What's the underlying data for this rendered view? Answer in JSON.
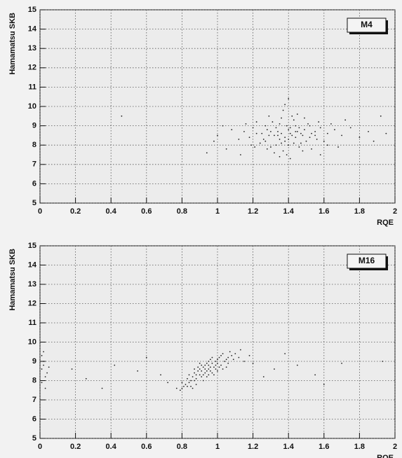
{
  "chart_data": [
    {
      "type": "scatter",
      "title": "M4",
      "x_label": "RQE",
      "y_label": "Hamamatsu SKB",
      "color": "#222222",
      "grid": true,
      "xlim": [
        0,
        2
      ],
      "ylim": [
        5,
        15
      ],
      "xticks": [
        0,
        0.2,
        0.4,
        0.6,
        0.8,
        1,
        1.2,
        1.4,
        1.6,
        1.8,
        2
      ],
      "yticks": [
        5,
        6,
        7,
        8,
        9,
        10,
        11,
        12,
        13,
        14,
        15
      ],
      "x": [
        1.32,
        1.41,
        1.38,
        1.45,
        1.28,
        1.52,
        1.35,
        1.47,
        1.22,
        1.58,
        1.4,
        1.3,
        1.43,
        1.36,
        1.49,
        1.26,
        1.55,
        1.39,
        1.33,
        1.44,
        1.2,
        1.62,
        1.37,
        1.42,
        1.29,
        1.51,
        1.34,
        1.46,
        1.24,
        1.6,
        1.41,
        1.31,
        1.48,
        1.18,
        1.66,
        1.38,
        1.27,
        1.53,
        1.35,
        1.44,
        1.21,
        1.57,
        1.4,
        1.32,
        1.47,
        1.15,
        1.7,
        1.39,
        1.36,
        1.5,
        1.25,
        1.43,
        1.33,
        1.55,
        1.28,
        1.45,
        1.12,
        1.75,
        1.4,
        1.37,
        1.62,
        1.22,
        1.48,
        1.3,
        1.52,
        1.35,
        1.42,
        1.19,
        1.64,
        1.38,
        1.08,
        1.8,
        1.46,
        1.27,
        1.56,
        1.34,
        1.41,
        1.05,
        1.85,
        1.49,
        1.16,
        1.68,
        1.29,
        1.53,
        1.36,
        1.44,
        0.98,
        1.92,
        1.03,
        0.94,
        1.88,
        0.46,
        1.95,
        1.0,
        1.72,
        1.13,
        1.4,
        1.58
      ],
      "values": [
        8.5,
        8.9,
        8.2,
        8.7,
        8.8,
        8.4,
        9.1,
        8.1,
        8.6,
        8.9,
        8.0,
        7.9,
        9.3,
        8.6,
        8.8,
        8.3,
        8.5,
        9.0,
        8.0,
        8.4,
        8.9,
        8.6,
        7.7,
        9.5,
        8.5,
        9.1,
        8.7,
        7.9,
        8.1,
        8.2,
        8.6,
        9.2,
        8.5,
        8.4,
        8.8,
        8.4,
        9.0,
        7.8,
        8.3,
        9.0,
        7.9,
        9.2,
        8.8,
        7.6,
        8.6,
        8.7,
        8.5,
        7.5,
        9.4,
        8.2,
        8.6,
        8.1,
        8.9,
        8.7,
        7.8,
        9.6,
        8.3,
        8.9,
        8.3,
        9.8,
        8.0,
        9.2,
        7.7,
        8.7,
        9.0,
        7.4,
        8.5,
        8.0,
        9.1,
        10.1,
        8.8,
        8.4,
        8.9,
        8.2,
        8.3,
        8.5,
        7.3,
        7.8,
        8.7,
        9.4,
        9.1,
        7.9,
        9.5,
        8.6,
        8.1,
        8.7,
        8.2,
        9.5,
        9.0,
        7.6,
        8.2,
        9.5,
        8.6,
        8.5,
        9.3,
        7.5,
        10.4,
        7.5
      ]
    },
    {
      "type": "scatter",
      "title": "M16",
      "x_label": "RQE",
      "y_label": "Hamamatsu SKB",
      "color": "#222222",
      "grid": true,
      "xlim": [
        0,
        2
      ],
      "ylim": [
        5,
        15
      ],
      "xticks": [
        0,
        0.2,
        0.4,
        0.6,
        0.8,
        1,
        1.2,
        1.4,
        1.6,
        1.8,
        2
      ],
      "yticks": [
        5,
        6,
        7,
        8,
        9,
        10,
        11,
        12,
        13,
        14,
        15
      ],
      "x": [
        0.95,
        0.9,
        1.0,
        0.85,
        1.05,
        0.92,
        0.97,
        0.88,
        1.02,
        0.94,
        0.82,
        1.08,
        0.96,
        0.91,
        0.99,
        0.87,
        1.03,
        0.93,
        0.8,
        1.1,
        0.98,
        0.89,
        1.01,
        0.84,
        0.95,
        0.9,
        1.06,
        0.86,
        0.97,
        0.92,
        1.04,
        0.81,
        0.99,
        0.94,
        1.12,
        0.88,
        0.96,
        0.83,
        1.0,
        0.91,
        1.07,
        0.85,
        0.93,
        0.98,
        1.02,
        0.87,
        0.95,
        0.9,
        1.15,
        0.79,
        0.96,
        1.09,
        0.84,
        0.92,
        1.01,
        0.89,
        0.97,
        0.86,
        1.03,
        0.94,
        1.18,
        0.8,
        0.99,
        0.91,
        1.05,
        0.88,
        0.77,
        1.13,
        0.95,
        0.83,
        1.2,
        0.93,
        1.0,
        0.87,
        1.06,
        0.02,
        0.01,
        0.03,
        0.02,
        0.01,
        0.04,
        0.02,
        0.03,
        0.01,
        0.05,
        0.26,
        0.35,
        0.42,
        0.55,
        0.68,
        0.72,
        1.26,
        1.38,
        1.45,
        1.55,
        1.7,
        1.93,
        0.18,
        1.6,
        0.6,
        1.32
      ],
      "values": [
        8.6,
        8.3,
        8.9,
        8.0,
        9.1,
        8.7,
        8.4,
        8.1,
        8.8,
        8.9,
        7.8,
        9.3,
        8.5,
        8.2,
        9.0,
        8.4,
        8.6,
        8.4,
        7.6,
        9.4,
        8.7,
        8.5,
        9.2,
        7.9,
        8.8,
        8.6,
        8.9,
        8.2,
        8.9,
        8.3,
        9.0,
        7.7,
        8.6,
        8.5,
        9.2,
        7.8,
        9.1,
        8.1,
        8.5,
        8.8,
        9.5,
        7.7,
        8.6,
        8.3,
        9.3,
        8.0,
        8.3,
        8.9,
        9.0,
        7.5,
        8.7,
        9.1,
        8.3,
        8.0,
        8.7,
        8.7,
        9.2,
        7.6,
        9.4,
        8.2,
        9.3,
        7.9,
        8.8,
        8.5,
        8.7,
        8.3,
        7.6,
        9.6,
        9.0,
        7.7,
        8.9,
        8.8,
        9.1,
        8.6,
        9.2,
        9.5,
        8.6,
        8.2,
        9.0,
        7.9,
        8.4,
        8.8,
        7.6,
        9.3,
        8.7,
        8.1,
        7.6,
        8.8,
        8.5,
        8.3,
        7.9,
        8.2,
        9.4,
        8.8,
        8.3,
        8.9,
        9.0,
        8.6,
        7.8,
        9.2,
        8.6
      ]
    }
  ]
}
